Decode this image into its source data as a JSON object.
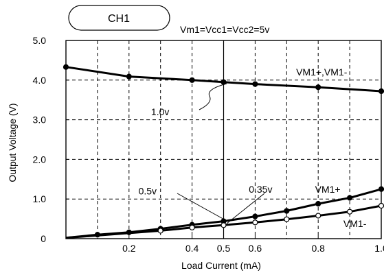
{
  "chart_data": {
    "type": "line",
    "title": "CH1",
    "subtitle": "Vm1=Vcc1=Vcc2=5v",
    "xlabel": "Load Current  (mA)",
    "ylabel": "Output Voltage (V)",
    "xlim": [
      0,
      1.0
    ],
    "ylim": [
      0,
      5.0
    ],
    "x_ticks": [
      {
        "value": 0.2,
        "label": "0.2"
      },
      {
        "value": 0.4,
        "label": "0.4"
      },
      {
        "value": 0.5,
        "label": "0.5"
      },
      {
        "value": 0.6,
        "label": "0.6"
      },
      {
        "value": 0.8,
        "label": "0.8"
      },
      {
        "value": 1.0,
        "label": "1.0"
      }
    ],
    "y_ticks": [
      {
        "value": 0,
        "label": "0"
      },
      {
        "value": 1.0,
        "label": "1.0"
      },
      {
        "value": 2.0,
        "label": "2.0"
      },
      {
        "value": 3.0,
        "label": "3.0"
      },
      {
        "value": 4.0,
        "label": "4.0"
      },
      {
        "value": 5.0,
        "label": "5.0"
      }
    ],
    "x_grid": [
      0.1,
      0.2,
      0.3,
      0.4,
      0.5,
      0.6,
      0.7,
      0.8,
      0.9
    ],
    "y_grid": [
      1.0,
      2.0,
      3.0,
      4.0
    ],
    "grid": true,
    "series": [
      {
        "name": "VM1+,VM1-",
        "marker": "filled",
        "line_start": {
          "x": 0,
          "y": 4.33
        },
        "points": [
          {
            "x": 0.0,
            "y": 4.33
          },
          {
            "x": 0.2,
            "y": 4.09
          },
          {
            "x": 0.4,
            "y": 4.0
          },
          {
            "x": 0.5,
            "y": 3.95
          },
          {
            "x": 0.6,
            "y": 3.9
          },
          {
            "x": 0.8,
            "y": 3.82
          },
          {
            "x": 1.0,
            "y": 3.72
          }
        ]
      },
      {
        "name": "VM1+",
        "marker": "filled",
        "line_start": {
          "x": 0,
          "y": 0.02
        },
        "points": [
          {
            "x": 0.1,
            "y": 0.1
          },
          {
            "x": 0.2,
            "y": 0.16
          },
          {
            "x": 0.3,
            "y": 0.25
          },
          {
            "x": 0.4,
            "y": 0.35
          },
          {
            "x": 0.5,
            "y": 0.44
          },
          {
            "x": 0.6,
            "y": 0.56
          },
          {
            "x": 0.7,
            "y": 0.7
          },
          {
            "x": 0.8,
            "y": 0.88
          },
          {
            "x": 0.9,
            "y": 1.03
          },
          {
            "x": 1.0,
            "y": 1.25
          }
        ]
      },
      {
        "name": "VM1-",
        "marker": "open",
        "line_start": {
          "x": 0,
          "y": 0.02
        },
        "points": [
          {
            "x": 0.3,
            "y": 0.2
          },
          {
            "x": 0.4,
            "y": 0.28
          },
          {
            "x": 0.5,
            "y": 0.34
          },
          {
            "x": 0.6,
            "y": 0.41
          },
          {
            "x": 0.7,
            "y": 0.49
          },
          {
            "x": 0.8,
            "y": 0.58
          },
          {
            "x": 0.9,
            "y": 0.68
          },
          {
            "x": 1.0,
            "y": 0.83
          }
        ]
      }
    ],
    "annotations": [
      {
        "text": "VM1+,VM1-",
        "x": 0.73,
        "y": 4.2
      },
      {
        "text": "1.0v",
        "x": 0.27,
        "y": 3.2
      },
      {
        "text": "0.5v",
        "x": 0.23,
        "y": 1.2
      },
      {
        "text": "0.35v",
        "x": 0.58,
        "y": 1.25
      },
      {
        "text": "VM1+",
        "x": 0.79,
        "y": 1.25
      },
      {
        "text": "VM1-",
        "x": 0.88,
        "y": 0.38
      }
    ],
    "reference_line": {
      "x": 0.5
    }
  }
}
